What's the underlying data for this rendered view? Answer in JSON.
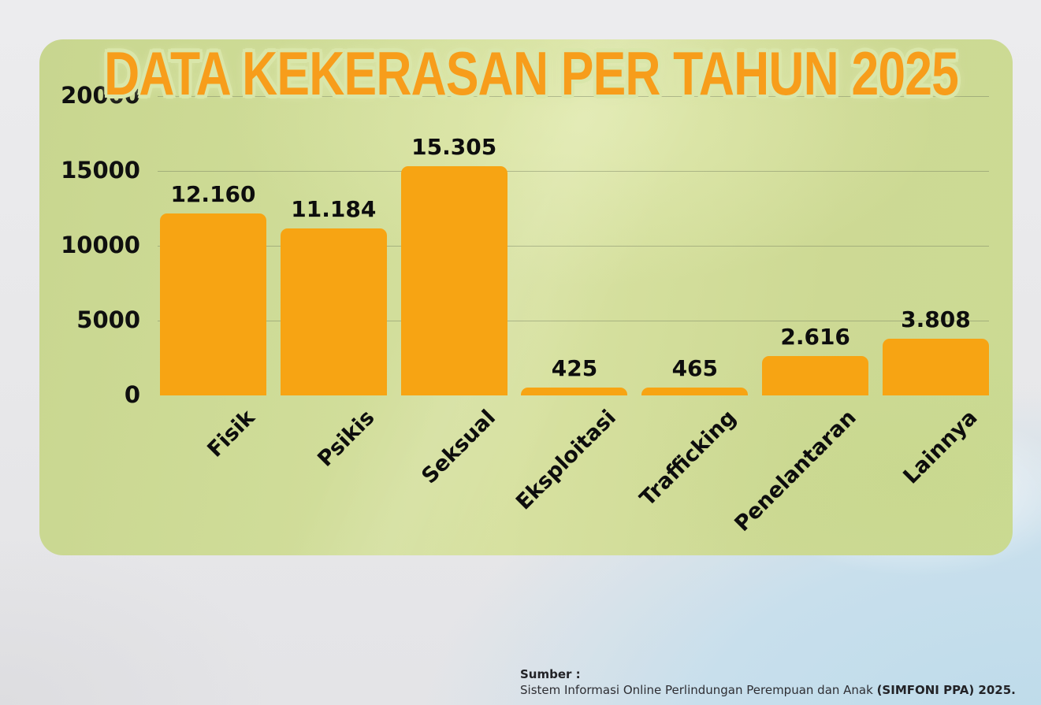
{
  "chart_data": {
    "type": "bar",
    "title": "DATA KEKERASAN PER TAHUN 2025",
    "categories": [
      "Fisik",
      "Psikis",
      "Seksual",
      "Eksploitasi",
      "Trafficking",
      "Penelantaran",
      "Lainnya"
    ],
    "values": [
      12160,
      11184,
      15305,
      425,
      465,
      2616,
      3808
    ],
    "value_labels": [
      "12.160",
      "11.184",
      "15.305",
      "425",
      "465",
      "2.616",
      "3.808"
    ],
    "xlabel": "",
    "ylabel": "",
    "ylim": [
      0,
      20000
    ],
    "yticks": [
      20000,
      15000,
      10000,
      5000,
      0
    ],
    "grid": true,
    "legend": false,
    "bar_color": "#f7a413",
    "category_label_rotation_deg": -45
  },
  "footer": {
    "label": "Sumber :",
    "text_regular": "Sistem Informasi Online Perlindungan Perempuan dan Anak ",
    "text_bold": "(SIMFONI PPA) 2025."
  },
  "colors": {
    "title_orange": "#f79d1b",
    "title_glow_green": "#d9e6aa",
    "panel_green": "#cfdc98",
    "background_gray": "#e9e9eb",
    "background_blue": "#c3dde9",
    "text_black": "#0d0d0d"
  }
}
